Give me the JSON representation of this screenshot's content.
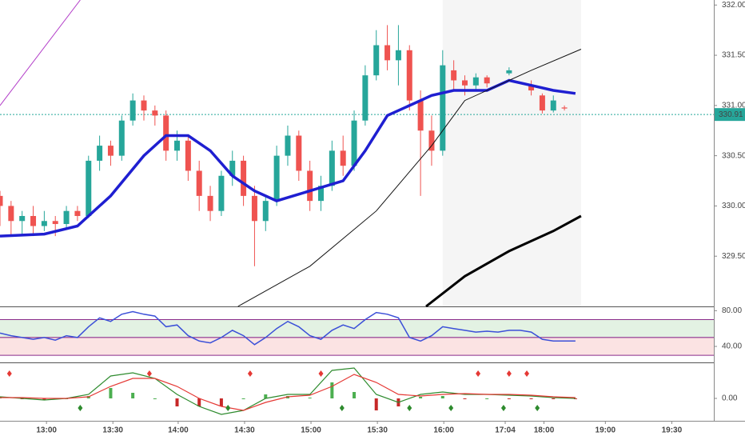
{
  "chart_data": {
    "type": "candlestick",
    "x": [
      0,
      2,
      4,
      6,
      8,
      10,
      12,
      14,
      16,
      18,
      20,
      22,
      24,
      26,
      28,
      30,
      32,
      34,
      36,
      38,
      40,
      42,
      44,
      46,
      48,
      50,
      52,
      54,
      56,
      58,
      60,
      62,
      64,
      66,
      68,
      70,
      72,
      74,
      76,
      78,
      80,
      82,
      84,
      86,
      88,
      92,
      96,
      98,
      100,
      102
    ],
    "open": [
      330.1,
      330.0,
      329.85,
      329.9,
      329.8,
      329.85,
      329.82,
      329.95,
      329.9,
      330.45,
      330.6,
      330.5,
      330.85,
      331.05,
      330.95,
      330.9,
      330.55,
      330.65,
      330.35,
      330.1,
      329.95,
      330.3,
      330.45,
      330.1,
      329.85,
      330.05,
      330.5,
      330.7,
      330.35,
      330.05,
      330.2,
      330.55,
      330.4,
      330.85,
      331.3,
      331.6,
      331.45,
      331.55,
      331.05,
      330.75,
      330.55,
      331.35,
      331.25,
      331.2,
      331.28,
      331.32,
      331.2,
      331.1,
      330.95,
      330.98
    ],
    "close": [
      330.0,
      329.85,
      329.9,
      329.8,
      329.85,
      329.82,
      329.95,
      329.9,
      330.45,
      330.6,
      330.5,
      330.85,
      331.05,
      330.95,
      330.9,
      330.55,
      330.65,
      330.35,
      330.1,
      329.95,
      330.3,
      330.45,
      330.1,
      329.85,
      330.05,
      330.5,
      330.7,
      330.35,
      330.05,
      330.2,
      330.55,
      330.4,
      330.85,
      331.3,
      331.6,
      331.45,
      331.55,
      331.05,
      330.75,
      330.55,
      331.4,
      331.25,
      331.2,
      331.28,
      331.22,
      331.35,
      331.15,
      330.95,
      331.05,
      330.97
    ],
    "high": [
      330.15,
      330.05,
      329.95,
      330.0,
      329.95,
      329.9,
      330.0,
      330.0,
      330.5,
      330.7,
      330.65,
      330.9,
      331.12,
      331.1,
      331.0,
      330.95,
      330.75,
      330.7,
      330.45,
      330.2,
      330.35,
      330.55,
      330.5,
      330.2,
      330.1,
      330.6,
      330.8,
      330.75,
      330.45,
      330.3,
      330.65,
      330.7,
      330.95,
      331.4,
      331.75,
      331.8,
      331.8,
      331.6,
      331.15,
      330.9,
      331.55,
      331.45,
      331.3,
      331.32,
      331.3,
      331.38,
      331.25,
      331.12,
      331.1,
      331.0
    ],
    "low": [
      329.8,
      329.7,
      329.7,
      329.7,
      329.75,
      329.7,
      329.78,
      329.85,
      329.88,
      330.35,
      330.4,
      330.45,
      330.8,
      330.85,
      330.8,
      330.45,
      330.45,
      330.25,
      329.95,
      329.85,
      329.9,
      330.2,
      330.0,
      329.4,
      329.75,
      330.0,
      330.4,
      330.25,
      329.95,
      329.95,
      330.15,
      330.3,
      330.35,
      330.8,
      331.25,
      331.35,
      331.2,
      330.95,
      330.1,
      330.4,
      330.5,
      331.15,
      331.1,
      331.15,
      331.18,
      331.3,
      331.1,
      330.92,
      330.93,
      330.95
    ],
    "up_color": "#26a69a",
    "down_color": "#ef5350",
    "xlim": [
      0,
      129
    ],
    "xticks": [
      {
        "value": 8.4,
        "label": "13:00"
      },
      {
        "value": 20.4,
        "label": "13:30"
      },
      {
        "value": 32.2,
        "label": "14:00"
      },
      {
        "value": 44.2,
        "label": "14:30"
      },
      {
        "value": 56.2,
        "label": "15:00"
      },
      {
        "value": 68.2,
        "label": "15:30"
      },
      {
        "value": 80.2,
        "label": "16:00"
      },
      {
        "value": 91.3,
        "label": "17:04"
      },
      {
        "value": 98.3,
        "label": "18:00"
      },
      {
        "value": 109.4,
        "label": "19:00"
      },
      {
        "value": 121.4,
        "label": "19:30"
      }
    ],
    "ylim": [
      329.0,
      332.05
    ],
    "yticks": [
      {
        "value": 329.5,
        "label": "329.50"
      },
      {
        "value": 330,
        "label": "330.00"
      },
      {
        "value": 330.5,
        "label": "330.50"
      },
      {
        "value": 331,
        "label": "331.00"
      },
      {
        "value": 331.5,
        "label": "331.50"
      },
      {
        "value": 332,
        "label": "332.00"
      }
    ],
    "last_price": 330.91,
    "shaded_xrange": [
      80,
      105
    ],
    "overlays": [
      {
        "color": "#1f1fd1",
        "width": 3.5,
        "x": [
          0,
          8,
          14,
          20,
          26,
          30,
          34,
          38,
          42,
          46,
          50,
          56,
          62,
          66,
          70,
          74,
          78,
          82,
          88,
          92,
          96,
          100,
          104
        ],
        "values": [
          329.7,
          329.72,
          329.8,
          330.1,
          330.5,
          330.7,
          330.7,
          330.55,
          330.3,
          330.15,
          330.05,
          330.15,
          330.25,
          330.55,
          330.9,
          331.0,
          331.1,
          331.15,
          331.15,
          331.25,
          331.2,
          331.15,
          331.12
        ]
      },
      {
        "color": "#111111",
        "width": 1,
        "x": [
          43,
          56,
          68,
          78,
          84,
          96,
          105
        ],
        "values": [
          329.0,
          329.4,
          329.95,
          330.6,
          331.05,
          331.35,
          331.56
        ]
      },
      {
        "color": "#000000",
        "width": 3,
        "x": [
          77,
          84,
          92,
          100,
          105
        ],
        "values": [
          329.0,
          329.3,
          329.55,
          329.75,
          329.9
        ]
      },
      {
        "color": "#b23cc8",
        "width": 1,
        "x": [
          0,
          14.5
        ],
        "values": [
          331.0,
          332.05
        ]
      }
    ],
    "rsi": {
      "color": "#3b4fd8",
      "x": [
        0,
        2,
        4,
        6,
        8,
        10,
        12,
        14,
        16,
        18,
        20,
        22,
        24,
        26,
        28,
        30,
        32,
        34,
        36,
        38,
        40,
        42,
        44,
        46,
        48,
        50,
        52,
        54,
        56,
        58,
        60,
        62,
        64,
        66,
        68,
        70,
        72,
        74,
        76,
        78,
        80,
        82,
        84,
        86,
        88,
        90,
        92,
        94,
        96,
        98,
        100,
        104
      ],
      "values": [
        55,
        52,
        50,
        48,
        50,
        47,
        52,
        50,
        62,
        72,
        68,
        76,
        79,
        76,
        74,
        62,
        64,
        52,
        46,
        44,
        50,
        58,
        52,
        42,
        50,
        60,
        68,
        62,
        52,
        48,
        58,
        64,
        60,
        70,
        78,
        76,
        72,
        50,
        46,
        52,
        62,
        60,
        58,
        56,
        57,
        56,
        58,
        58,
        56,
        48,
        46,
        46
      ],
      "ylim": [
        23,
        83
      ],
      "yticks": [
        {
          "value": 80,
          "label": "80.00"
        },
        {
          "value": 40,
          "label": "40.00"
        }
      ],
      "upper_band": [
        50,
        70
      ],
      "lower_band": [
        30,
        50
      ]
    },
    "macd": {
      "x": [
        0,
        4,
        8,
        12,
        16,
        20,
        24,
        28,
        32,
        36,
        40,
        44,
        48,
        52,
        56,
        60,
        64,
        68,
        72,
        76,
        80,
        84,
        88,
        92,
        96,
        100,
        104
      ],
      "macd": [
        0.02,
        0.0,
        -0.02,
        0.0,
        0.05,
        0.28,
        0.32,
        0.25,
        0.05,
        -0.1,
        -0.2,
        -0.15,
        0.0,
        0.05,
        0.05,
        0.35,
        0.38,
        0.05,
        -0.05,
        0.05,
        0.08,
        0.05,
        0.05,
        0.04,
        0.03,
        0.01,
        0.0
      ],
      "signal": [
        0.01,
        0.01,
        0.0,
        0.0,
        0.02,
        0.15,
        0.25,
        0.25,
        0.15,
        0.0,
        -0.1,
        -0.15,
        -0.05,
        0.02,
        0.04,
        0.15,
        0.3,
        0.2,
        0.05,
        0.03,
        0.05,
        0.06,
        0.05,
        0.05,
        0.04,
        0.02,
        0.01
      ],
      "hist": [
        0.01,
        -0.01,
        -0.02,
        0.0,
        0.03,
        0.13,
        0.07,
        0.0,
        -0.1,
        -0.1,
        -0.1,
        0.0,
        0.05,
        0.03,
        0.01,
        0.2,
        0.08,
        -0.15,
        -0.1,
        0.02,
        0.03,
        -0.01,
        0.0,
        -0.01,
        -0.01,
        -0.01,
        -0.01
      ],
      "macd_color": "#2e8b2e",
      "signal_color": "#e53935",
      "ylim": [
        -0.27,
        0.43
      ],
      "yticks": [
        {
          "value": 0,
          "label": "0.00"
        }
      ],
      "sell_x": [
        1.7,
        27,
        45.2,
        58,
        86.4,
        92,
        95.2
      ],
      "buy_x": [
        14.5,
        41.2,
        61.8,
        74,
        81.5,
        91,
        97.1
      ]
    }
  }
}
